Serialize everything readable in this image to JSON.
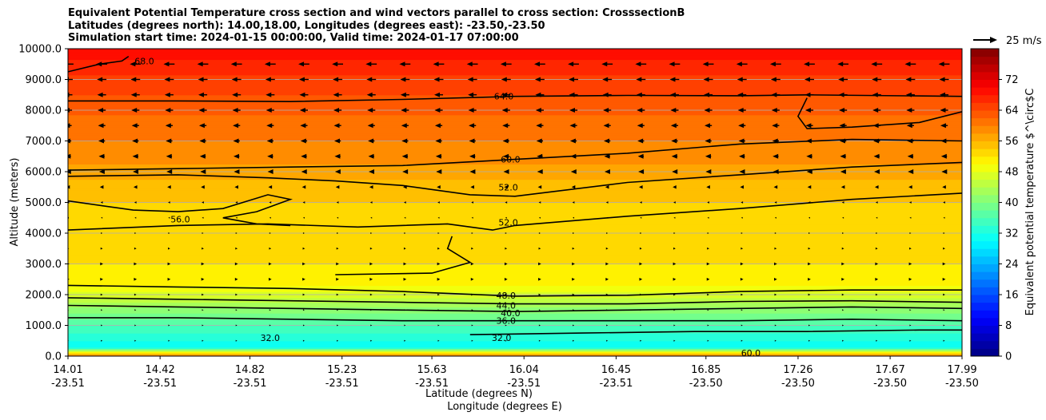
{
  "chart_data": {
    "type": "heatmap",
    "title_lines": [
      "Equivalent Potential Temperature cross section and wind vectors parallel to cross section: CrosssectionB",
      "Latitudes (degrees north): 14.00,18.00, Longitudes (degrees east): -23.50,-23.50",
      "Simulation start time: 2024-01-15 00:00:00, Valid time: 2024-01-17 07:00:00"
    ],
    "ylabel": "Altitude (meters)",
    "xlabel_lines": [
      "Latitude (degrees N)",
      "Longitude (degrees E)"
    ],
    "ylim": [
      0,
      10000
    ],
    "y_ticks": [
      0,
      1000,
      2000,
      3000,
      4000,
      5000,
      6000,
      7000,
      8000,
      9000,
      10000
    ],
    "y_tick_labels": [
      "0.0",
      "1000.0",
      "2000.0",
      "3000.0",
      "4000.0",
      "5000.0",
      "6000.0",
      "7000.0",
      "8000.0",
      "9000.0",
      "10000.0"
    ],
    "x_ticks": [
      {
        "lat": "14.01",
        "lon": "-23.51"
      },
      {
        "lat": "14.42",
        "lon": "-23.51"
      },
      {
        "lat": "14.82",
        "lon": "-23.51"
      },
      {
        "lat": "15.23",
        "lon": "-23.51"
      },
      {
        "lat": "15.63",
        "lon": "-23.51"
      },
      {
        "lat": "16.04",
        "lon": "-23.51"
      },
      {
        "lat": "16.45",
        "lon": "-23.51"
      },
      {
        "lat": "16.85",
        "lon": "-23.50"
      },
      {
        "lat": "17.26",
        "lon": "-23.50"
      },
      {
        "lat": "17.67",
        "lon": "-23.50"
      },
      {
        "lat": "17.99",
        "lon": "-23.50"
      }
    ],
    "grid": true,
    "colorbar": {
      "label": "Equivalent potential temperature $^\\circ$C",
      "ticks": [
        0,
        8,
        16,
        24,
        32,
        40,
        48,
        56,
        64,
        72
      ],
      "tick_labels": [
        "0",
        "8",
        "16",
        "24",
        "32",
        "40",
        "48",
        "56",
        "64",
        "72"
      ],
      "range": [
        0,
        80
      ]
    },
    "wind_key": {
      "label": "25 m/s",
      "value": 25,
      "units": "m/s"
    },
    "contour_labels": [
      {
        "text": "64.0",
        "lat": 15.95,
        "alt": 8450
      },
      {
        "text": "60.0",
        "lat": 15.98,
        "alt": 6400
      },
      {
        "text": "56.0",
        "lat": 14.51,
        "alt": 4450
      },
      {
        "text": "52.0",
        "lat": 15.97,
        "alt": 5500
      },
      {
        "text": "52.0",
        "lat": 15.97,
        "alt": 4350
      },
      {
        "text": "48.0",
        "lat": 15.96,
        "alt": 1980
      },
      {
        "text": "44.0",
        "lat": 15.96,
        "alt": 1650
      },
      {
        "text": "40.0",
        "lat": 15.98,
        "alt": 1400
      },
      {
        "text": "36.0",
        "lat": 15.96,
        "alt": 1150
      },
      {
        "text": "32.0",
        "lat": 15.94,
        "alt": 600
      },
      {
        "text": "32.0",
        "lat": 14.91,
        "alt": 600
      },
      {
        "text": "68.0",
        "lat": 14.35,
        "alt": 9600
      },
      {
        "text": "60.0",
        "lat": 17.05,
        "alt": 100
      }
    ],
    "theta_e_profile": [
      {
        "alt": 0,
        "value": 62
      },
      {
        "alt": 150,
        "value": 48
      },
      {
        "alt": 300,
        "value": 30
      },
      {
        "alt": 600,
        "value": 33
      },
      {
        "alt": 1000,
        "value": 36
      },
      {
        "alt": 1300,
        "value": 39
      },
      {
        "alt": 1600,
        "value": 42
      },
      {
        "alt": 1900,
        "value": 46
      },
      {
        "alt": 2300,
        "value": 50
      },
      {
        "alt": 3000,
        "value": 52
      },
      {
        "alt": 4500,
        "value": 53
      },
      {
        "alt": 5500,
        "value": 55
      },
      {
        "alt": 6500,
        "value": 59
      },
      {
        "alt": 7500,
        "value": 61
      },
      {
        "alt": 8500,
        "value": 64
      },
      {
        "alt": 9500,
        "value": 67
      },
      {
        "alt": 10000,
        "value": 70
      }
    ],
    "contours": [
      {
        "level": 68,
        "points": [
          [
            14.01,
            9250
          ],
          [
            14.15,
            9500
          ],
          [
            14.25,
            9600
          ],
          [
            14.28,
            9750
          ]
        ]
      },
      {
        "level": 64,
        "points": [
          [
            14.01,
            8300
          ],
          [
            14.5,
            8300
          ],
          [
            15.0,
            8280
          ],
          [
            15.5,
            8350
          ],
          [
            16.0,
            8450
          ],
          [
            16.5,
            8480
          ],
          [
            17.0,
            8470
          ],
          [
            17.3,
            8500
          ],
          [
            17.99,
            8450
          ]
        ]
      },
      {
        "level": 64,
        "points": [
          [
            17.99,
            7950
          ],
          [
            17.8,
            7600
          ],
          [
            17.5,
            7450
          ],
          [
            17.3,
            7400
          ],
          [
            17.26,
            7800
          ],
          [
            17.3,
            8400
          ]
        ]
      },
      {
        "level": 60,
        "points": [
          [
            14.01,
            6050
          ],
          [
            14.5,
            6100
          ],
          [
            15.0,
            6150
          ],
          [
            15.5,
            6200
          ],
          [
            16.0,
            6400
          ],
          [
            16.5,
            6600
          ],
          [
            17.0,
            6900
          ],
          [
            17.5,
            7050
          ],
          [
            17.99,
            7000
          ]
        ]
      },
      {
        "level": 56,
        "points": [
          [
            14.01,
            5850
          ],
          [
            14.5,
            5900
          ],
          [
            14.9,
            5800
          ],
          [
            15.2,
            5700
          ],
          [
            15.5,
            5550
          ],
          [
            15.8,
            5250
          ],
          [
            16.0,
            5200
          ],
          [
            16.5,
            5650
          ],
          [
            17.0,
            5900
          ],
          [
            17.5,
            6150
          ],
          [
            17.99,
            6300
          ]
        ]
      },
      {
        "level": 56,
        "points": [
          [
            14.01,
            5050
          ],
          [
            14.3,
            4750
          ],
          [
            14.5,
            4700
          ],
          [
            14.7,
            4800
          ],
          [
            14.9,
            5250
          ],
          [
            15.0,
            5100
          ],
          [
            14.85,
            4700
          ],
          [
            14.7,
            4500
          ],
          [
            14.85,
            4300
          ],
          [
            15.0,
            4250
          ]
        ]
      },
      {
        "level": 52,
        "points": [
          [
            14.01,
            4100
          ],
          [
            14.5,
            4250
          ],
          [
            14.9,
            4300
          ],
          [
            15.3,
            4200
          ],
          [
            15.7,
            4300
          ],
          [
            15.9,
            4100
          ],
          [
            16.0,
            4250
          ],
          [
            16.5,
            4550
          ],
          [
            17.0,
            4800
          ],
          [
            17.5,
            5100
          ],
          [
            17.99,
            5300
          ]
        ]
      },
      {
        "level": 52,
        "points": [
          [
            15.72,
            3900
          ],
          [
            15.7,
            3500
          ],
          [
            15.8,
            3050
          ],
          [
            15.63,
            2700
          ],
          [
            15.2,
            2650
          ]
        ]
      },
      {
        "level": 48,
        "points": [
          [
            14.01,
            2300
          ],
          [
            14.5,
            2250
          ],
          [
            15.0,
            2200
          ],
          [
            15.5,
            2100
          ],
          [
            16.0,
            1950
          ],
          [
            16.5,
            1980
          ],
          [
            17.0,
            2100
          ],
          [
            17.5,
            2150
          ],
          [
            17.99,
            2150
          ]
        ]
      },
      {
        "level": 44,
        "points": [
          [
            14.01,
            1900
          ],
          [
            14.5,
            1850
          ],
          [
            15.0,
            1800
          ],
          [
            15.5,
            1750
          ],
          [
            16.0,
            1700
          ],
          [
            16.5,
            1700
          ],
          [
            17.0,
            1780
          ],
          [
            17.5,
            1800
          ],
          [
            17.99,
            1750
          ]
        ]
      },
      {
        "level": 40,
        "points": [
          [
            14.01,
            1650
          ],
          [
            14.5,
            1600
          ],
          [
            15.0,
            1550
          ],
          [
            15.5,
            1500
          ],
          [
            16.0,
            1450
          ],
          [
            16.5,
            1500
          ],
          [
            17.0,
            1550
          ],
          [
            17.5,
            1600
          ],
          [
            17.99,
            1550
          ]
        ]
      },
      {
        "level": 36,
        "points": [
          [
            14.01,
            1250
          ],
          [
            14.5,
            1250
          ],
          [
            15.0,
            1200
          ],
          [
            15.5,
            1150
          ],
          [
            16.0,
            1150
          ],
          [
            16.5,
            1150
          ],
          [
            17.0,
            1150
          ],
          [
            17.5,
            1200
          ],
          [
            17.99,
            1150
          ]
        ]
      },
      {
        "level": 32,
        "points": [
          [
            15.8,
            700
          ],
          [
            16.3,
            750
          ],
          [
            16.8,
            800
          ],
          [
            17.3,
            800
          ],
          [
            17.8,
            850
          ],
          [
            17.99,
            850
          ]
        ]
      }
    ],
    "wind_rows": [
      {
        "alt": 9500,
        "u": -15
      },
      {
        "alt": 9000,
        "u": -13
      },
      {
        "alt": 8500,
        "u": -12
      },
      {
        "alt": 8000,
        "u": -11
      },
      {
        "alt": 7500,
        "u": -10
      },
      {
        "alt": 7000,
        "u": -9
      },
      {
        "alt": 6500,
        "u": -8
      },
      {
        "alt": 6000,
        "u": -7
      },
      {
        "alt": 5500,
        "u": -5
      },
      {
        "alt": 5000,
        "u": -3
      },
      {
        "alt": 4500,
        "u": -1
      },
      {
        "alt": 4000,
        "u": 1
      },
      {
        "alt": 3500,
        "u": 3
      },
      {
        "alt": 3000,
        "u": 4
      },
      {
        "alt": 2500,
        "u": 4
      },
      {
        "alt": 2000,
        "u": 3
      },
      {
        "alt": 1500,
        "u": 2
      },
      {
        "alt": 1000,
        "u": 2
      },
      {
        "alt": 500,
        "u": 2
      }
    ],
    "wind_column_lats": [
      14.01,
      14.16,
      14.31,
      14.46,
      14.61,
      14.76,
      14.91,
      15.06,
      15.21,
      15.36,
      15.51,
      15.66,
      15.81,
      15.96,
      16.11,
      16.26,
      16.41,
      16.56,
      16.71,
      16.86,
      17.01,
      17.16,
      17.31,
      17.46,
      17.61,
      17.76,
      17.91
    ]
  }
}
